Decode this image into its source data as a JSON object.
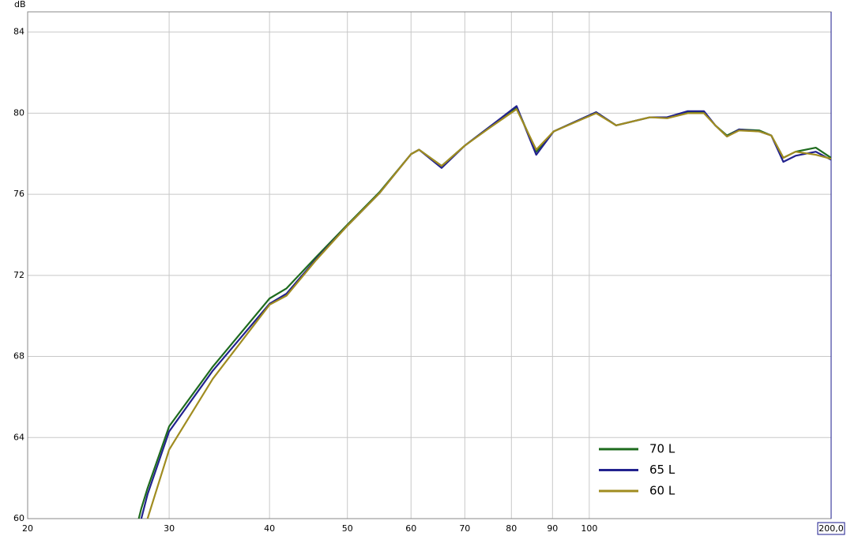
{
  "chart_data": {
    "type": "line",
    "y_label": "dB",
    "log_x": true,
    "grid": true,
    "legend": "lower-right",
    "xlim": [
      20,
      200
    ],
    "ylim": [
      60,
      85
    ],
    "xticks": [
      20,
      30,
      40,
      50,
      60,
      70,
      80,
      90,
      100,
      {
        "value": 200,
        "label": "200,0"
      }
    ],
    "yticks": [
      60,
      64,
      68,
      72,
      76,
      80,
      84
    ],
    "x": [
      27.5,
      27.7,
      28.2,
      30,
      34,
      40,
      42,
      45.7,
      50,
      54.8,
      60,
      61.4,
      65.5,
      70,
      75,
      81.2,
      85.9,
      90.3,
      102,
      108,
      119,
      125,
      132.6,
      138.9,
      143.5,
      148.4,
      153.6,
      162.8,
      168.5,
      174.4,
      180.6,
      191.4,
      200
    ],
    "series": [
      {
        "name": "70 L",
        "color": "#1e6b1e",
        "values": [
          60,
          60.5,
          61.5,
          64.55,
          67.5,
          70.86,
          71.36,
          72.9,
          74.5,
          76.1,
          77.98,
          78.2,
          77.4,
          78.4,
          79.3,
          80.3,
          78.1,
          79.1,
          80.05,
          79.4,
          79.8,
          79.8,
          80.05,
          80.05,
          79.4,
          78.9,
          79.2,
          79.15,
          78.9,
          77.8,
          78.1,
          78.3,
          77.8
        ]
      },
      {
        "name": "65 L",
        "color": "#22228e",
        "values": [
          null,
          60,
          61.2,
          64.3,
          67.3,
          70.6,
          71.1,
          72.8,
          74.45,
          76.05,
          77.98,
          78.2,
          77.3,
          78.4,
          79.3,
          80.35,
          77.95,
          79.1,
          80.05,
          79.4,
          79.8,
          79.8,
          80.1,
          80.1,
          79.4,
          78.85,
          79.2,
          79.1,
          78.9,
          77.6,
          77.9,
          78.1,
          77.7
        ]
      },
      {
        "name": "60 L",
        "color": "#a08c20",
        "values": [
          null,
          null,
          60,
          63.4,
          66.9,
          70.55,
          71.0,
          72.75,
          74.45,
          76.05,
          77.98,
          78.2,
          77.4,
          78.4,
          79.25,
          80.2,
          78.2,
          79.1,
          80.0,
          79.4,
          79.8,
          79.75,
          80.0,
          80.0,
          79.4,
          78.85,
          79.15,
          79.1,
          78.9,
          77.8,
          78.1,
          77.95,
          77.75
        ]
      }
    ]
  }
}
